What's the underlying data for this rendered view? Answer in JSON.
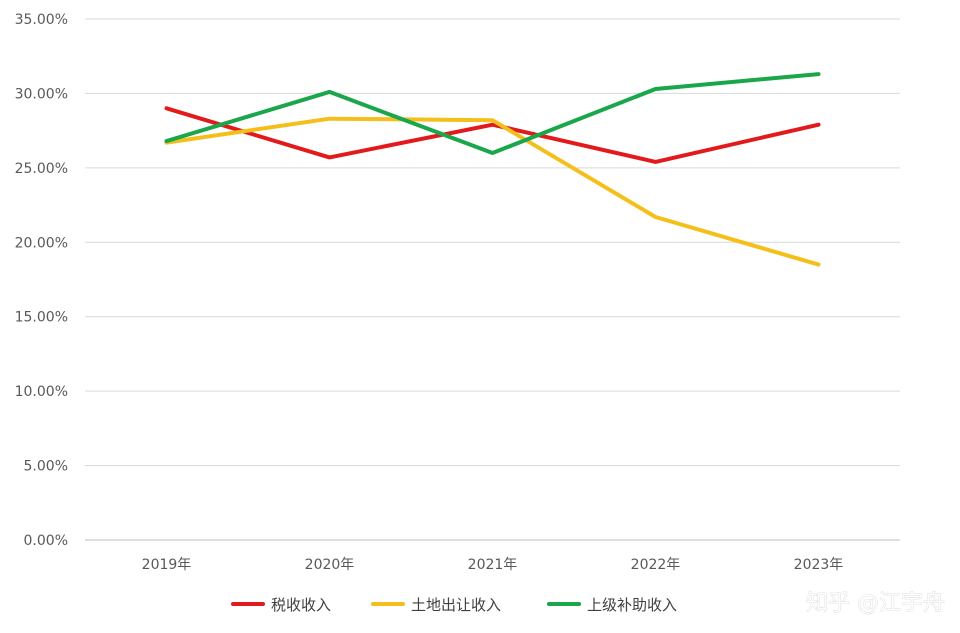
{
  "chart_data": {
    "type": "line",
    "title": "",
    "xlabel": "",
    "ylabel": "",
    "categories": [
      "2019年",
      "2020年",
      "2021年",
      "2022年",
      "2023年"
    ],
    "ylim": [
      0,
      35
    ],
    "yticks": [
      "0.00%",
      "5.00%",
      "10.00%",
      "15.00%",
      "20.00%",
      "25.00%",
      "30.00%",
      "35.00%"
    ],
    "grid": true,
    "legend_position": "bottom",
    "series": [
      {
        "name": "税收收入",
        "color": "#e31a1c",
        "values": [
          29.0,
          25.7,
          27.9,
          25.4,
          27.9
        ]
      },
      {
        "name": "土地出让收入",
        "color": "#f4bf1a",
        "values": [
          26.7,
          28.3,
          28.2,
          21.7,
          18.5
        ]
      },
      {
        "name": "上级补助收入",
        "color": "#1aa64a",
        "values": [
          26.8,
          30.1,
          26.0,
          30.3,
          31.3
        ]
      }
    ]
  },
  "watermark": "知乎 @江宇舟"
}
